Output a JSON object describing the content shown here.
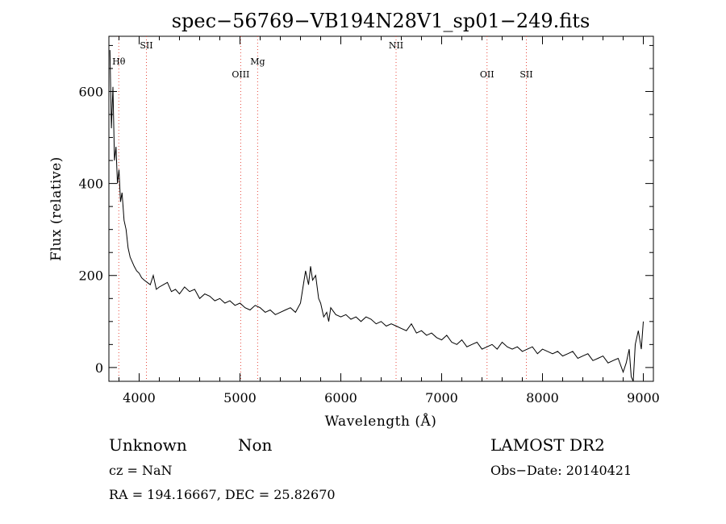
{
  "chart_data": {
    "type": "line",
    "title": "spec−56769−VB194N28V1_sp01−249.fits",
    "xlabel": "Wavelength (Å)",
    "ylabel": "Flux (relative)",
    "xlim": [
      3700,
      9100
    ],
    "ylim": [
      -30,
      720
    ],
    "x_ticks": [
      4000,
      5000,
      6000,
      7000,
      8000,
      9000
    ],
    "y_ticks": [
      0,
      200,
      400,
      600
    ],
    "grid": false,
    "line_color": "#000000",
    "marker_color": "#e8483c",
    "spectrum": {
      "x": [
        3710,
        3725,
        3740,
        3755,
        3770,
        3785,
        3800,
        3815,
        3830,
        3850,
        3870,
        3890,
        3910,
        3930,
        3950,
        3975,
        4000,
        4025,
        4050,
        4080,
        4110,
        4140,
        4170,
        4200,
        4240,
        4280,
        4320,
        4360,
        4400,
        4450,
        4500,
        4550,
        4600,
        4650,
        4700,
        4750,
        4800,
        4850,
        4900,
        4950,
        5000,
        5050,
        5100,
        5150,
        5200,
        5250,
        5300,
        5350,
        5400,
        5450,
        5500,
        5550,
        5600,
        5650,
        5680,
        5700,
        5720,
        5750,
        5780,
        5800,
        5830,
        5860,
        5880,
        5900,
        5950,
        6000,
        6050,
        6100,
        6150,
        6200,
        6250,
        6300,
        6350,
        6400,
        6450,
        6500,
        6550,
        6600,
        6650,
        6700,
        6750,
        6800,
        6850,
        6900,
        6950,
        7000,
        7050,
        7100,
        7150,
        7200,
        7250,
        7300,
        7350,
        7400,
        7450,
        7500,
        7550,
        7600,
        7650,
        7700,
        7750,
        7800,
        7850,
        7900,
        7950,
        8000,
        8050,
        8100,
        8150,
        8200,
        8250,
        8300,
        8350,
        8400,
        8450,
        8500,
        8550,
        8600,
        8650,
        8700,
        8750,
        8800,
        8830,
        8860,
        8880,
        8900,
        8920,
        8950,
        8980,
        9000
      ],
      "y": [
        690,
        520,
        610,
        450,
        480,
        400,
        430,
        360,
        380,
        320,
        300,
        260,
        240,
        230,
        220,
        210,
        205,
        195,
        190,
        185,
        180,
        200,
        170,
        175,
        180,
        185,
        165,
        170,
        160,
        175,
        165,
        170,
        150,
        160,
        155,
        145,
        150,
        140,
        145,
        135,
        140,
        130,
        125,
        135,
        130,
        120,
        125,
        115,
        120,
        125,
        130,
        120,
        140,
        210,
        180,
        220,
        190,
        200,
        150,
        140,
        110,
        120,
        100,
        130,
        115,
        110,
        115,
        105,
        110,
        100,
        110,
        105,
        95,
        100,
        90,
        95,
        90,
        85,
        80,
        95,
        75,
        80,
        70,
        75,
        65,
        60,
        70,
        55,
        50,
        60,
        45,
        50,
        55,
        40,
        45,
        50,
        40,
        55,
        45,
        40,
        45,
        35,
        40,
        45,
        30,
        40,
        35,
        30,
        35,
        25,
        30,
        35,
        20,
        25,
        30,
        15,
        20,
        25,
        10,
        15,
        20,
        -10,
        10,
        40,
        -20,
        -30,
        50,
        80,
        40,
        100
      ]
    },
    "lines": [
      {
        "label": "Hθ",
        "wavelength": 3798
      },
      {
        "label": "SII",
        "wavelength": 4072
      },
      {
        "label": "OIII",
        "wavelength": 5007
      },
      {
        "label": "Mg",
        "wavelength": 5175
      },
      {
        "label": "NII",
        "wavelength": 6548
      },
      {
        "label": "OII",
        "wavelength": 7450
      },
      {
        "label": "SII",
        "wavelength": 7840
      }
    ]
  },
  "info": {
    "class_label": "Unknown",
    "subclass_label": "Non",
    "cz": "cz = NaN",
    "coords": "RA = 194.16667, DEC =  25.82670",
    "survey": "LAMOST DR2",
    "obs_date": "Obs−Date: 20140421"
  }
}
